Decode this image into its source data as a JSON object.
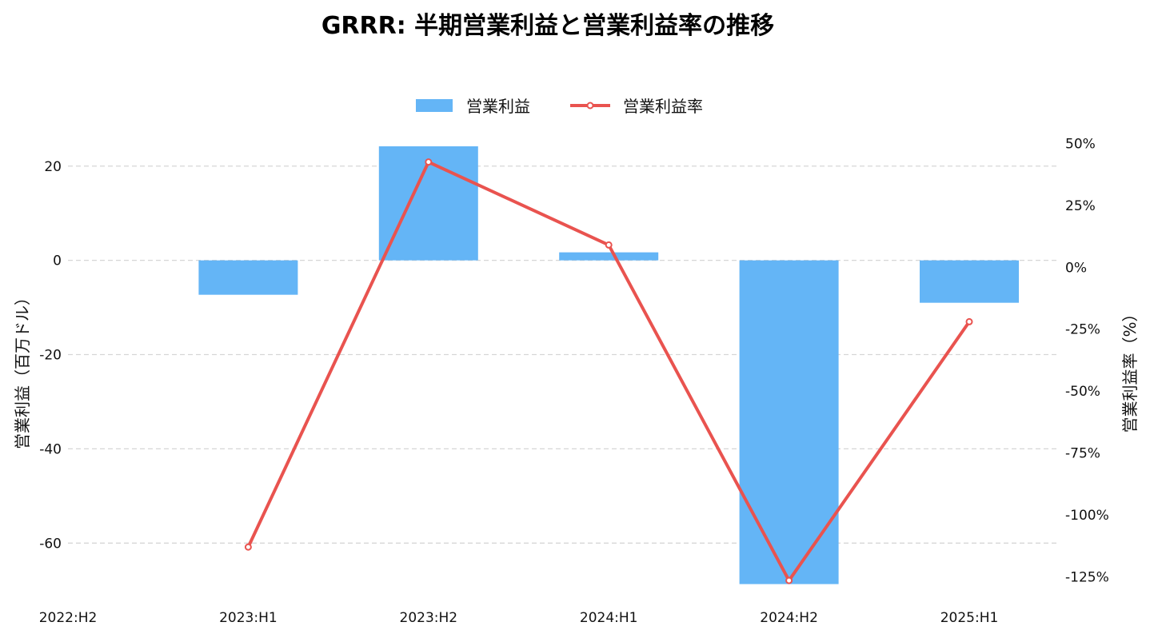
{
  "chart_data": {
    "type": "bar",
    "title": "GRRR: 半期営業利益と営業利益率の推移",
    "categories": [
      "2022:H2",
      "2023:H1",
      "2023:H2",
      "2024:H1",
      "2024:H2",
      "2025:H1"
    ],
    "series": [
      {
        "name": "営業利益",
        "type": "bar",
        "axis": "left",
        "color": "#64B5F6",
        "values": [
          null,
          -7.3,
          24.2,
          1.7,
          -68.7,
          -9.0
        ]
      },
      {
        "name": "営業利益率",
        "type": "line",
        "axis": "right",
        "color": "#E9534F",
        "values": [
          null,
          -113.0,
          42.5,
          9.0,
          -126.5,
          -22.0
        ]
      }
    ],
    "y_left": {
      "label": "営業利益（百万ドル）",
      "ticks": [
        20,
        0,
        -20,
        -40,
        -60
      ],
      "tick_labels": [
        "20",
        "0",
        "-20",
        "-40",
        "-60"
      ],
      "range": [
        -70.3,
        29.8
      ]
    },
    "y_right": {
      "label": "営業利益率（%）",
      "ticks": [
        50,
        25,
        0,
        -25,
        -50,
        -75,
        -100,
        -125
      ],
      "tick_labels": [
        "50%",
        "25%",
        "0%",
        "-25%",
        "-50%",
        "-75%",
        "-100%",
        "-125%"
      ],
      "range": [
        -131.0,
        59.5
      ]
    },
    "grid": true,
    "legend": "top-center"
  }
}
